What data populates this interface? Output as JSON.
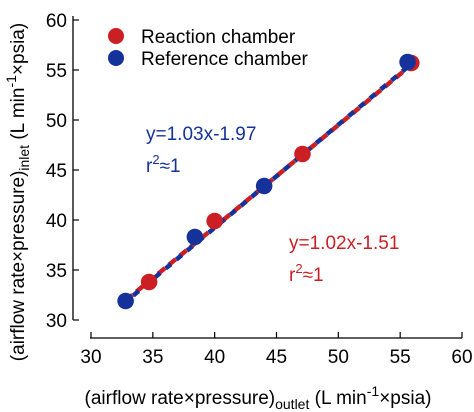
{
  "chart_data": {
    "type": "scatter",
    "xlim": [
      30,
      60
    ],
    "ylim": [
      30,
      60
    ],
    "xticks": [
      30,
      35,
      40,
      45,
      50,
      55,
      60
    ],
    "yticks": [
      30,
      35,
      40,
      45,
      50,
      55,
      60
    ],
    "xticklabels": [
      "30",
      "35",
      "40",
      "45",
      "50",
      "55",
      "60"
    ],
    "yticklabels": [
      "30",
      "35",
      "40",
      "45",
      "50",
      "55",
      "60"
    ],
    "xlabel": {
      "prefix": "(airflow rate",
      "times1": "×",
      "mid": "pressure)",
      "subscript": "outlet",
      "unit_open": " (L min",
      "superscript": "-1",
      "times2": "×",
      "unit_close": "psia)"
    },
    "ylabel": {
      "prefix": "(airflow rate",
      "times1": "×",
      "mid": "pressure)",
      "subscript": "inlet",
      "unit_open": " (L min",
      "superscript": "-1",
      "times2": "×",
      "unit_close": "psia)"
    },
    "grid": false,
    "legend_position": "top-left",
    "series": [
      {
        "name": "Reaction chamber",
        "color": "#cc1f24",
        "points": [
          [
            34.7,
            33.8
          ],
          [
            40.0,
            39.9
          ],
          [
            47.1,
            46.6
          ],
          [
            55.9,
            55.7
          ]
        ],
        "fit": {
          "slope": 1.02,
          "intercept": -1.51,
          "x_range": [
            32.8,
            56.0
          ]
        },
        "equation": "y=1.02x-1.51",
        "r_base": "r",
        "r_sup": "2",
        "r_rest": "≈1"
      },
      {
        "name": "Reference chamber",
        "color": "#15329a",
        "points": [
          [
            32.8,
            31.9
          ],
          [
            38.4,
            38.3
          ],
          [
            44.0,
            43.4
          ],
          [
            55.6,
            55.8
          ]
        ],
        "fit": {
          "slope": 1.03,
          "intercept": -1.97,
          "x_range": [
            32.8,
            56.0
          ]
        },
        "equation": "y=1.03x-1.97",
        "r_base": "r",
        "r_sup": "2",
        "r_rest": "≈1"
      }
    ]
  }
}
